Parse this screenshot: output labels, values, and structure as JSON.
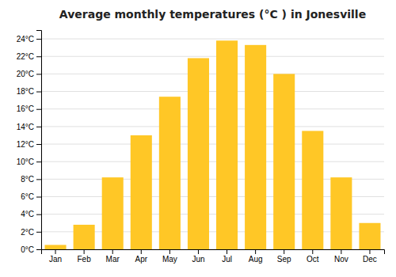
{
  "chart_data": {
    "type": "bar",
    "title": "Average monthly temperatures (°C ) in Jonesville",
    "categories": [
      "Jan",
      "Feb",
      "Mar",
      "Apr",
      "May",
      "Jun",
      "Jul",
      "Aug",
      "Sep",
      "Oct",
      "Nov",
      "Dec"
    ],
    "values": [
      0.5,
      2.8,
      8.2,
      13.0,
      17.4,
      21.8,
      23.8,
      23.3,
      20.0,
      13.5,
      8.2,
      3.0
    ],
    "color": "#FFC726",
    "ylim": [
      0,
      25
    ],
    "yticks": [
      {
        "value": 0,
        "label": "0°C"
      },
      {
        "value": 2,
        "label": "2°C"
      },
      {
        "value": 4,
        "label": "4°C"
      },
      {
        "value": 6,
        "label": "6°C"
      },
      {
        "value": 8,
        "label": "8°C"
      },
      {
        "value": 10,
        "label": "10°C"
      },
      {
        "value": 12,
        "label": "12°C"
      },
      {
        "value": 14,
        "label": "14°C"
      },
      {
        "value": 16,
        "label": "16°C"
      },
      {
        "value": 18,
        "label": "18°C"
      },
      {
        "value": 20,
        "label": "20°C"
      },
      {
        "value": 22,
        "label": "22°C"
      },
      {
        "value": 24,
        "label": "24°C"
      }
    ],
    "grid": true
  }
}
